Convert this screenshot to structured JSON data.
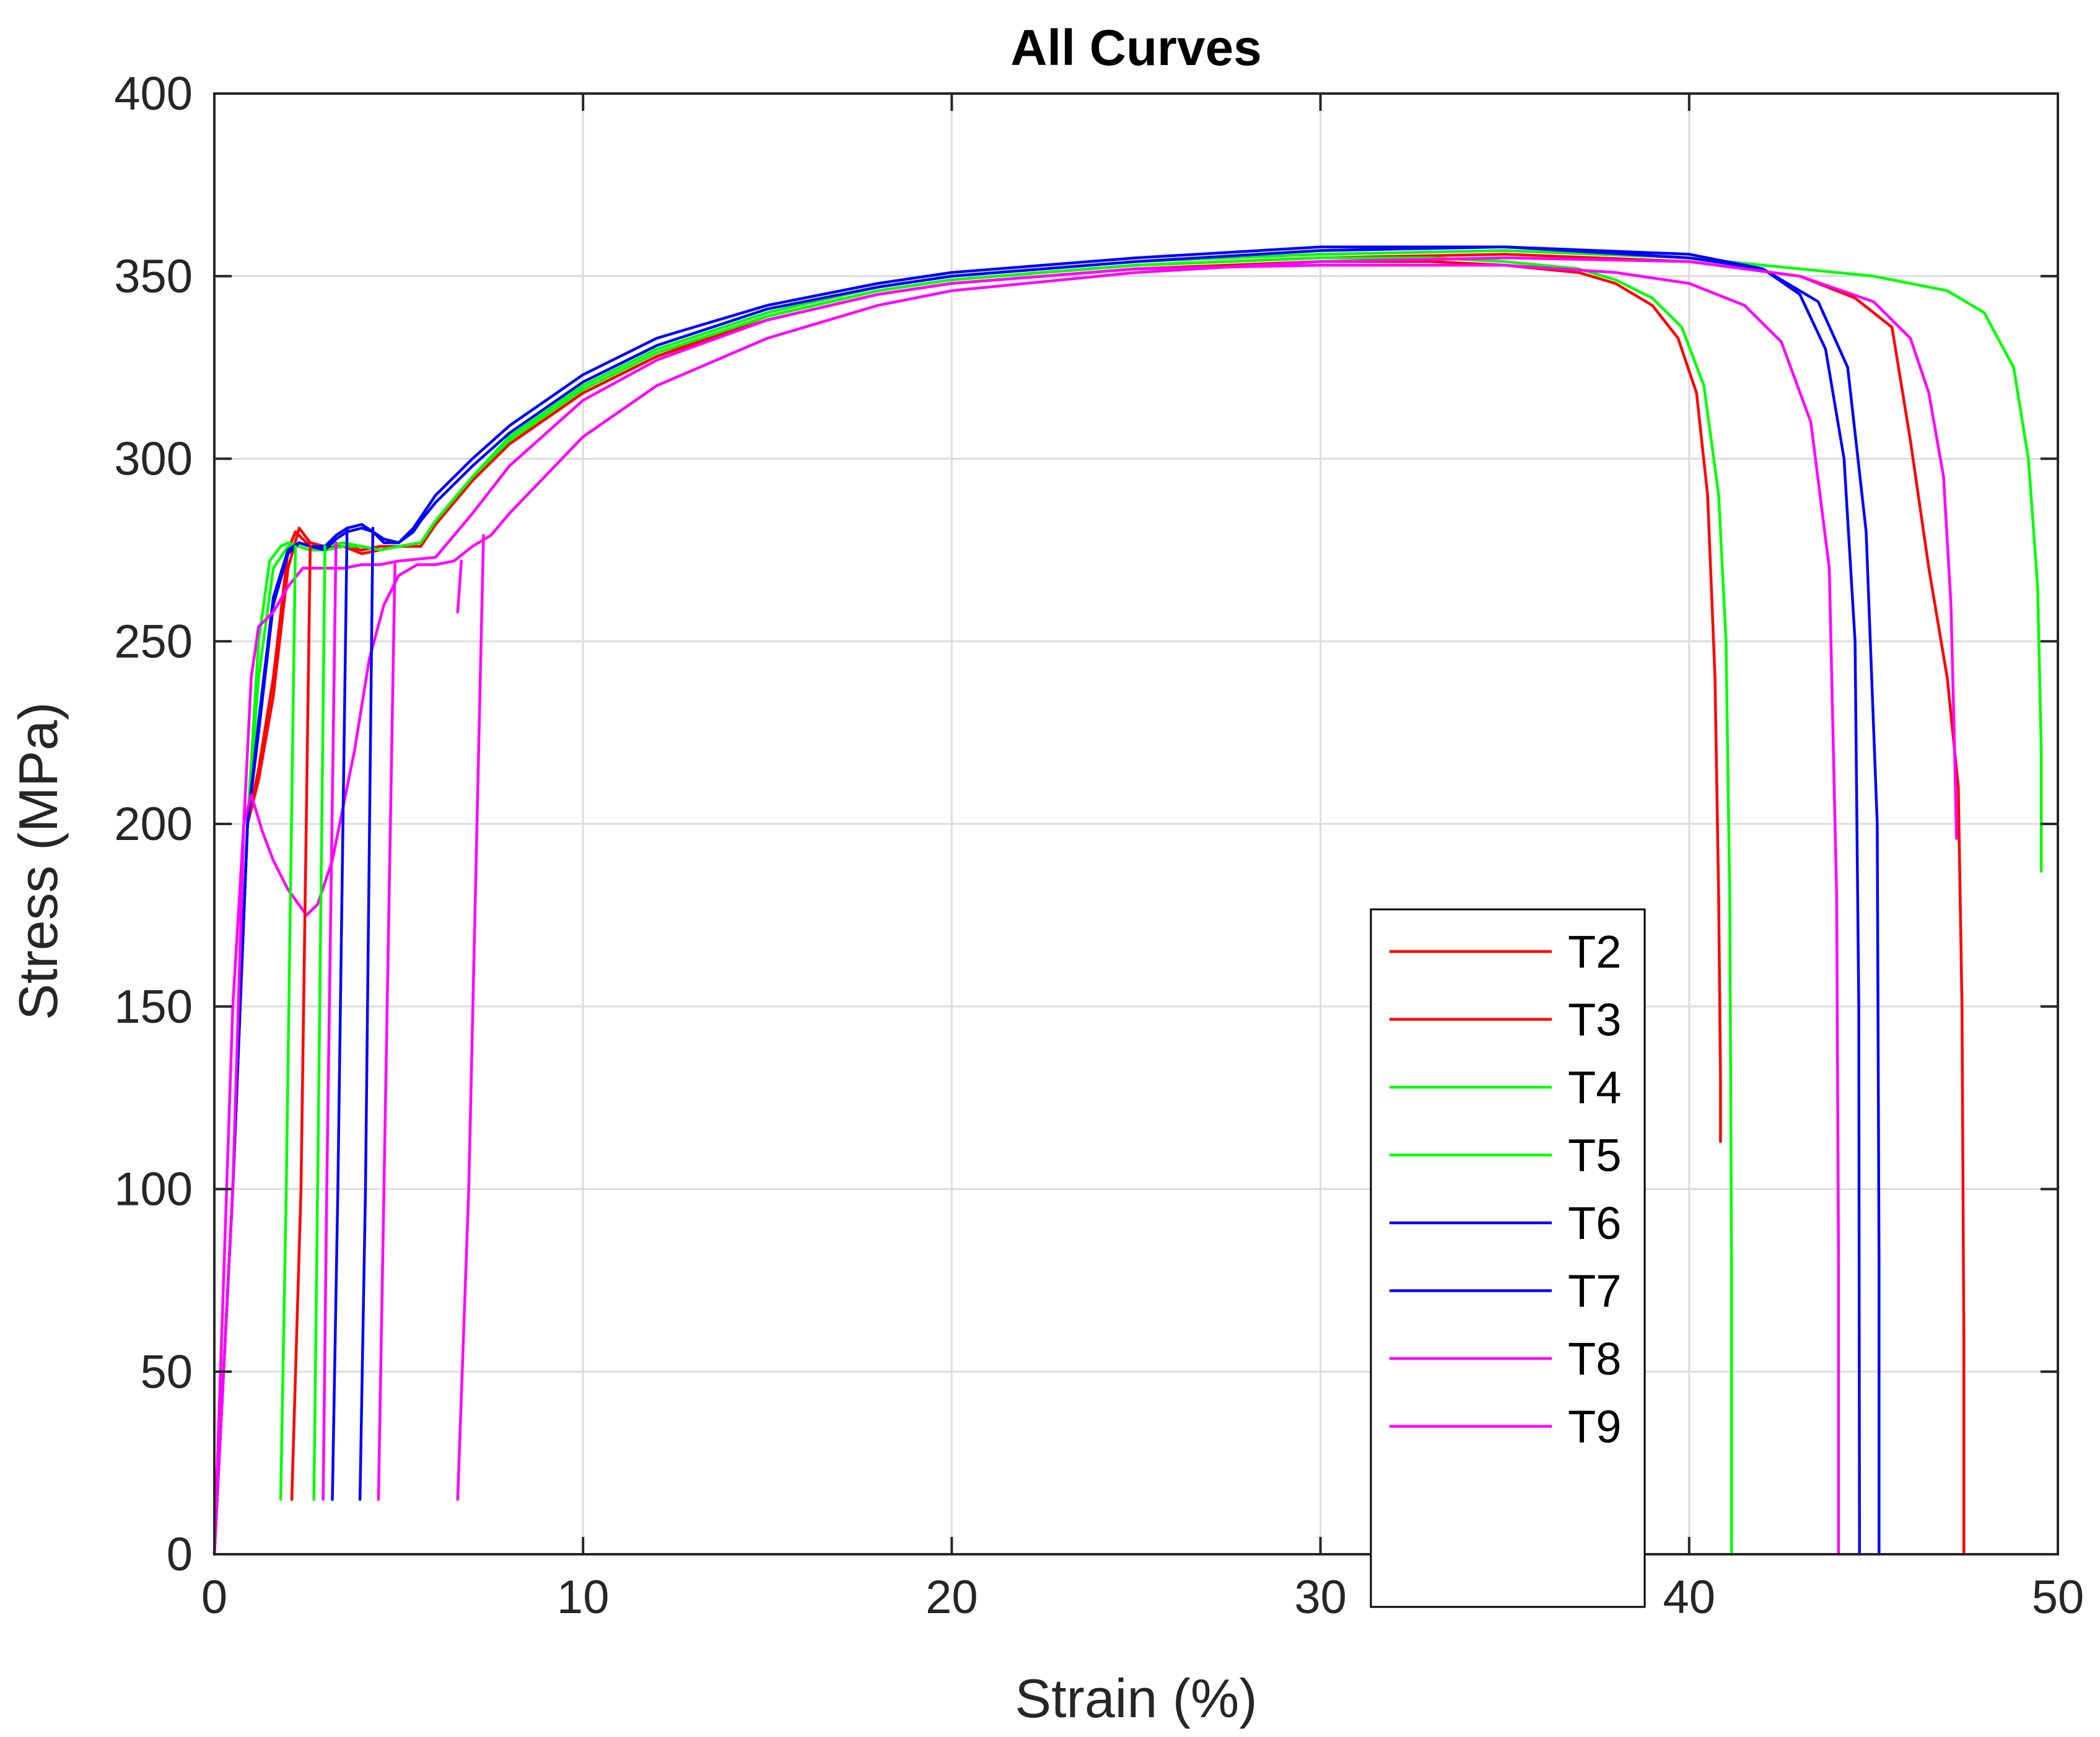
{
  "chart_data": {
    "type": "line",
    "title": "All Curves",
    "xlabel": "Strain (%)",
    "ylabel": "Stress (MPa)",
    "xlim": [
      0,
      50
    ],
    "ylim": [
      0,
      400
    ],
    "xticks": [
      "0",
      "10",
      "20",
      "30",
      "40",
      "50"
    ],
    "yticks": [
      "0",
      "50",
      "100",
      "150",
      "200",
      "250",
      "300",
      "350",
      "400"
    ],
    "grid": true,
    "legend_position": "bottom-right",
    "colors": {
      "T2": "#ff0000",
      "T3": "#ff0000",
      "T4": "#00ff00",
      "T5": "#00ff00",
      "T6": "#0000ff",
      "T7": "#0000ff",
      "T8": "#ff00ff",
      "T9": "#ff00ff"
    },
    "series": [
      {
        "name": "T2",
        "x": [
          0,
          0.5,
          0.9,
          1.2,
          1.6,
          2.0,
          2.2,
          2.6,
          3.0,
          3.5,
          4.0,
          4.5,
          5.0,
          5.6,
          6.0,
          7,
          8,
          10,
          12,
          15,
          18,
          20,
          25,
          30,
          33,
          35,
          37,
          38,
          39,
          39.7,
          40.2,
          40.5,
          40.7,
          40.8,
          40.85,
          40.85
        ],
        "y": [
          0,
          100,
          200,
          215,
          240,
          275,
          280,
          276,
          275,
          276,
          274,
          275,
          276,
          276,
          282,
          294,
          304,
          318,
          328,
          338,
          345,
          348,
          352,
          354,
          354,
          353,
          351,
          348,
          342,
          333,
          318,
          290,
          240,
          180,
          130,
          113
        ]
      },
      {
        "name": "T3",
        "x": [
          0,
          0.5,
          0.9,
          1.2,
          1.6,
          2.0,
          2.3,
          2.6,
          3.0,
          3.5,
          4.0,
          4.5,
          5.0,
          5.6,
          6.0,
          7,
          8,
          10,
          12,
          15,
          18,
          20,
          25,
          30,
          35,
          40,
          43,
          44.5,
          45.5,
          46,
          46.5,
          47,
          47.3,
          47.4,
          47.45,
          47.45
        ],
        "y": [
          0,
          100,
          200,
          212,
          235,
          270,
          281,
          277,
          276,
          276,
          275,
          276,
          276,
          277,
          282,
          294,
          304,
          318,
          328,
          339,
          346,
          349,
          353,
          355,
          356,
          354,
          350,
          344,
          336,
          305,
          270,
          240,
          210,
          150,
          60,
          0
        ]
      },
      {
        "name": "T4",
        "x": [
          0,
          0.5,
          0.9,
          1.2,
          1.5,
          1.8,
          2.0,
          2.3,
          2.6,
          3.0,
          3.5,
          4.0,
          4.5,
          5.0,
          5.6,
          6.0,
          7,
          8,
          10,
          12,
          15,
          18,
          20,
          25,
          30,
          35,
          40,
          45,
          47,
          48,
          48.8,
          49.2,
          49.45,
          49.55,
          49.55
        ],
        "y": [
          0,
          100,
          200,
          250,
          272,
          276,
          277,
          276,
          275,
          276,
          277,
          276,
          275,
          276,
          277,
          283,
          295,
          306,
          320,
          330,
          340,
          347,
          350,
          354,
          356,
          357,
          355,
          350,
          346,
          340,
          325,
          300,
          265,
          220,
          187
        ]
      },
      {
        "name": "T5",
        "x": [
          0,
          0.5,
          0.9,
          1.2,
          1.6,
          2.0,
          2.3,
          2.6,
          3.0,
          3.5,
          4.0,
          4.5,
          5.0,
          5.6,
          6.0,
          7,
          8,
          10,
          12,
          15,
          18,
          20,
          25,
          30,
          33,
          35,
          37,
          38,
          39,
          39.8,
          40.4,
          40.8,
          41.0,
          41.1,
          41.15,
          41.15
        ],
        "y": [
          0,
          100,
          200,
          240,
          270,
          276,
          276,
          275,
          275,
          276,
          276,
          275,
          276,
          277,
          283,
          295,
          305,
          319,
          329,
          339,
          346,
          349,
          353,
          355,
          355,
          354,
          352,
          349,
          344,
          336,
          320,
          290,
          250,
          180,
          80,
          0
        ]
      },
      {
        "name": "T6",
        "x": [
          0,
          0.5,
          0.9,
          1.2,
          1.6,
          2.0,
          2.3,
          2.6,
          3.0,
          3.3,
          3.6,
          4.0,
          4.3,
          4.6,
          5.0,
          5.4,
          5.6,
          6.0,
          7,
          8,
          10,
          12,
          15,
          18,
          20,
          25,
          30,
          35,
          40,
          42,
          43,
          43.7,
          44.2,
          44.5,
          44.6,
          44.62
        ],
        "y": [
          0,
          100,
          200,
          225,
          260,
          274,
          277,
          276,
          275,
          278,
          280,
          281,
          280,
          277,
          277,
          280,
          283,
          288,
          298,
          307,
          321,
          331,
          341,
          347,
          350,
          354,
          357,
          358,
          356,
          352,
          345,
          330,
          300,
          250,
          150,
          0
        ]
      },
      {
        "name": "T7",
        "x": [
          0,
          0.5,
          0.9,
          1.2,
          1.6,
          2.0,
          2.3,
          2.6,
          3.0,
          3.3,
          3.6,
          4.0,
          4.3,
          4.6,
          5.0,
          5.4,
          5.6,
          6.0,
          7,
          8,
          10,
          12,
          15,
          18,
          20,
          25,
          30,
          35,
          40,
          42,
          43.5,
          44.3,
          44.8,
          45.1,
          45.15,
          45.15
        ],
        "y": [
          0,
          100,
          200,
          228,
          262,
          275,
          277,
          276,
          276,
          279,
          281,
          282,
          280,
          278,
          277,
          281,
          284,
          290,
          300,
          309,
          323,
          333,
          342,
          348,
          351,
          355,
          358,
          358,
          355,
          352,
          343,
          325,
          280,
          200,
          80,
          0
        ]
      },
      {
        "name": "T8",
        "x": [
          0,
          0.5,
          0.8,
          1.0,
          1.2,
          1.6,
          2.0,
          2.4,
          3.0,
          3.5,
          4.0,
          4.5,
          5.0,
          6.0,
          7,
          8,
          10,
          12,
          15,
          18,
          20,
          25,
          30,
          35,
          38,
          40,
          41.5,
          42.5,
          43.3,
          43.8,
          44.0,
          44.05,
          44.05
        ],
        "y": [
          0,
          100,
          200,
          240,
          254,
          258,
          265,
          270,
          270,
          270,
          271,
          271,
          272,
          273,
          285,
          298,
          316,
          327,
          338,
          345,
          348,
          352,
          353,
          353,
          351,
          348,
          342,
          332,
          310,
          270,
          180,
          80,
          0
        ]
      },
      {
        "name": "T9",
        "x": [
          0,
          0.5,
          0.8,
          1.0,
          1.3,
          1.6,
          2.0,
          2.5,
          2.8,
          3.2,
          3.5,
          3.8,
          4.2,
          4.6,
          5.0,
          5.5,
          6.0,
          6.5,
          7.0,
          7.5,
          8,
          10,
          12,
          15,
          18,
          20,
          25,
          30,
          35,
          40,
          43,
          45,
          46,
          46.5,
          46.9,
          47.1,
          47.2,
          47.25
        ],
        "y": [
          0,
          150,
          200,
          208,
          198,
          190,
          182,
          175,
          178,
          190,
          205,
          220,
          245,
          260,
          268,
          271,
          271,
          272,
          276,
          279,
          285,
          306,
          320,
          333,
          342,
          346,
          351,
          354,
          355,
          354,
          350,
          343,
          333,
          318,
          295,
          260,
          220,
          196
        ]
      }
    ],
    "unload_branches": [
      {
        "series": "T2",
        "x": [
          2.6,
          2.35,
          2.1
        ],
        "y": [
          276,
          100,
          15
        ]
      },
      {
        "series": "T4",
        "x": [
          2.2,
          1.95,
          1.8
        ],
        "y": [
          276,
          100,
          15
        ]
      },
      {
        "series": "T5",
        "x": [
          3.0,
          2.8,
          2.7
        ],
        "y": [
          276,
          100,
          15
        ]
      },
      {
        "series": "T6",
        "x": [
          3.6,
          3.35,
          3.2
        ],
        "y": [
          281,
          100,
          15
        ]
      },
      {
        "series": "T7",
        "x": [
          4.3,
          4.1,
          3.95
        ],
        "y": [
          281,
          100,
          15
        ]
      },
      {
        "series": "T8",
        "x": [
          3.3,
          3.05,
          2.95
        ],
        "y": [
          277,
          100,
          15
        ]
      },
      {
        "series": "T8",
        "x": [
          4.9,
          4.6,
          4.45
        ],
        "y": [
          271,
          100,
          15
        ]
      },
      {
        "series": "T9",
        "x": [
          7.3,
          6.9,
          6.6
        ],
        "y": [
          279,
          100,
          15
        ]
      },
      {
        "series": "T9",
        "x": [
          6.7,
          6.65,
          6.6
        ],
        "y": [
          272,
          265,
          258
        ]
      }
    ]
  }
}
